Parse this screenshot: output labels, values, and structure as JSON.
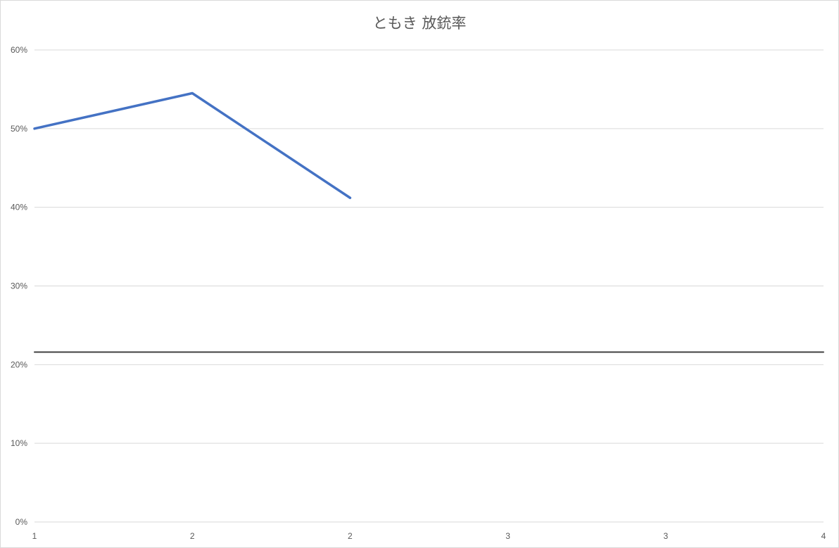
{
  "chart_data": {
    "type": "line",
    "title": "ともき 放銃率",
    "xlabel": "",
    "ylabel": "",
    "ylim": [
      0,
      0.6
    ],
    "y_ticks": [
      0,
      0.1,
      0.2,
      0.3,
      0.4,
      0.5,
      0.6
    ],
    "y_tick_labels": [
      "0%",
      "10%",
      "20%",
      "30%",
      "40%",
      "50%",
      "60%"
    ],
    "x_tick_labels": [
      "1",
      "2",
      "2",
      "3",
      "3",
      "4"
    ],
    "grid": true,
    "legend": "none",
    "series": [
      {
        "values": [
          0.5,
          0.545,
          0.412
        ],
        "color": "#4472c4"
      },
      {
        "values": [
          0.216,
          0.216,
          0.216,
          0.216,
          0.216,
          0.216
        ],
        "color": "#404040"
      }
    ]
  }
}
